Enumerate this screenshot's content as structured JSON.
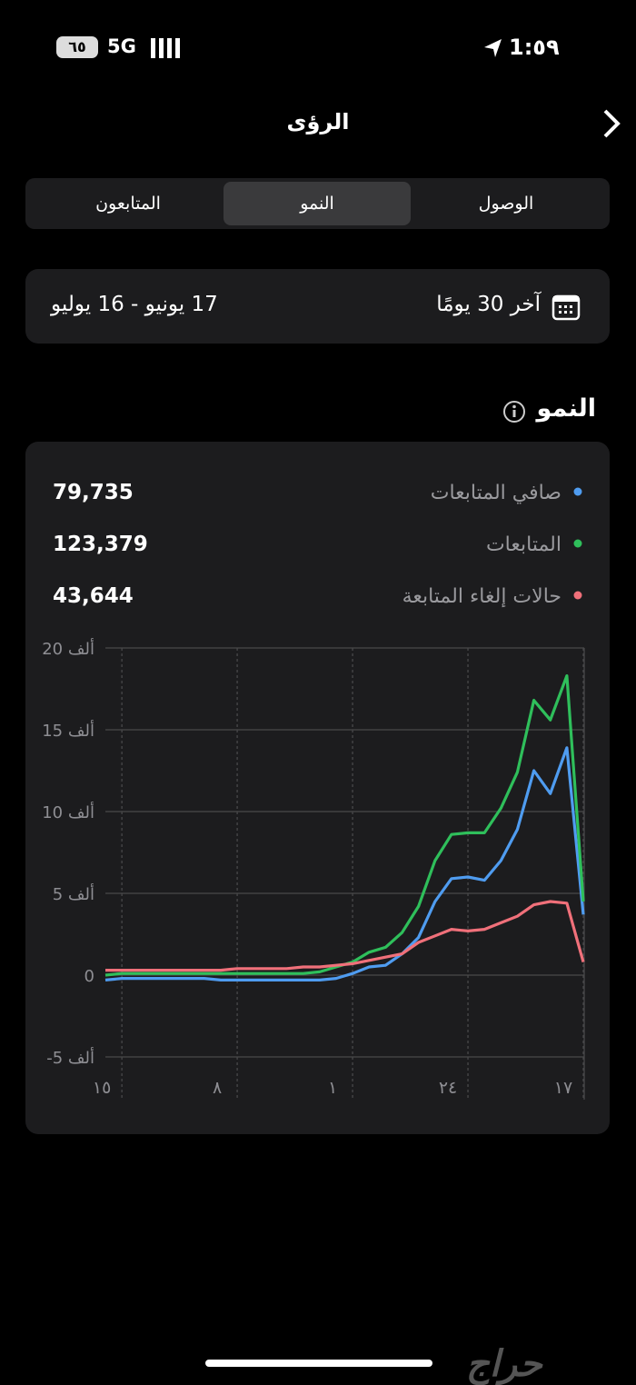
{
  "status_bar": {
    "time": "1:٥٩",
    "network": "5G",
    "battery": "٦٥"
  },
  "header": {
    "title": "الرؤى"
  },
  "tabs": [
    "الوصول",
    "النمو",
    "المتابعون"
  ],
  "date_range": {
    "period": "آخر 30 يومًا",
    "range": "17 يونيو - 16 يوليو"
  },
  "section": {
    "title": "النمو"
  },
  "watermark": "حراج",
  "chart_data": {
    "type": "line",
    "reversed": true,
    "grid": true,
    "categories": [
      "١٧",
      null,
      null,
      null,
      null,
      null,
      null,
      "٢٤",
      null,
      null,
      null,
      null,
      null,
      null,
      "١",
      null,
      null,
      null,
      null,
      null,
      null,
      "٨",
      null,
      null,
      null,
      null,
      null,
      null,
      "١٥",
      null
    ],
    "ylim": [
      -5000,
      20000
    ],
    "yticks": [
      {
        "value": -5000,
        "label": "-5 ألف"
      },
      0,
      {
        "value": 5000,
        "label": "5 ألف"
      },
      {
        "value": 10000,
        "label": "10 ألف"
      },
      {
        "value": 15000,
        "label": "15 ألف"
      },
      {
        "value": 20000,
        "label": "20 ألف"
      }
    ],
    "series": [
      {
        "name": "صافي المتابعات",
        "total": "79,735",
        "color": "#4f9cf0",
        "values": [
          3700,
          13900,
          11100,
          12500,
          8900,
          7000,
          5800,
          6000,
          5900,
          4500,
          2300,
          1300,
          600,
          500,
          100,
          -200,
          -300,
          -300,
          -300,
          -300,
          -300,
          -300,
          -300,
          -200,
          -200,
          -200,
          -200,
          -200,
          -200,
          -300
        ]
      },
      {
        "name": "المتابعات",
        "total": "123,379",
        "color": "#2fbf5b",
        "values": [
          4500,
          18300,
          15600,
          16800,
          12400,
          10200,
          8700,
          8700,
          8600,
          7000,
          4200,
          2600,
          1700,
          1400,
          800,
          500,
          200,
          100,
          100,
          100,
          100,
          100,
          100,
          100,
          100,
          100,
          100,
          100,
          100,
          0
        ]
      },
      {
        "name": "حالات إلغاء المتابعة",
        "total": "43,644",
        "color": "#f0707a",
        "values": [
          800,
          4400,
          4500,
          4300,
          3600,
          3200,
          2800,
          2700,
          2800,
          2400,
          2000,
          1300,
          1100,
          900,
          700,
          600,
          500,
          500,
          400,
          400,
          400,
          400,
          300,
          300,
          300,
          300,
          300,
          300,
          300,
          300
        ]
      }
    ]
  }
}
